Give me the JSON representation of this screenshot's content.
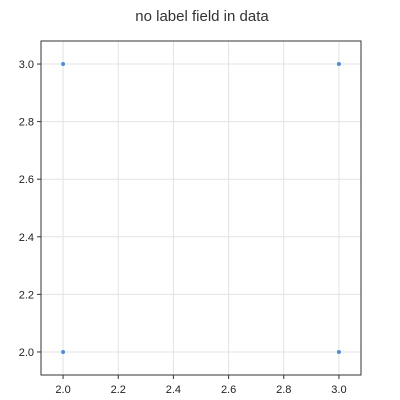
{
  "chart_data": {
    "type": "scatter",
    "title": "no label field in data",
    "xlabel": "",
    "ylabel": "",
    "xlim": [
      1.92,
      3.08
    ],
    "ylim": [
      1.92,
      3.08
    ],
    "x_ticks": [
      "2.0",
      "2.2",
      "2.4",
      "2.6",
      "2.8",
      "3.0"
    ],
    "y_ticks": [
      "2.0",
      "2.2",
      "2.4",
      "2.6",
      "2.8",
      "3.0"
    ],
    "grid": true,
    "legend": "none",
    "series": [
      {
        "points": [
          {
            "x": 2.0,
            "y": 3.0
          },
          {
            "x": 3.0,
            "y": 3.0
          },
          {
            "x": 2.0,
            "y": 2.0
          },
          {
            "x": 3.0,
            "y": 2.0
          }
        ],
        "color": "#4a90d9"
      }
    ]
  }
}
